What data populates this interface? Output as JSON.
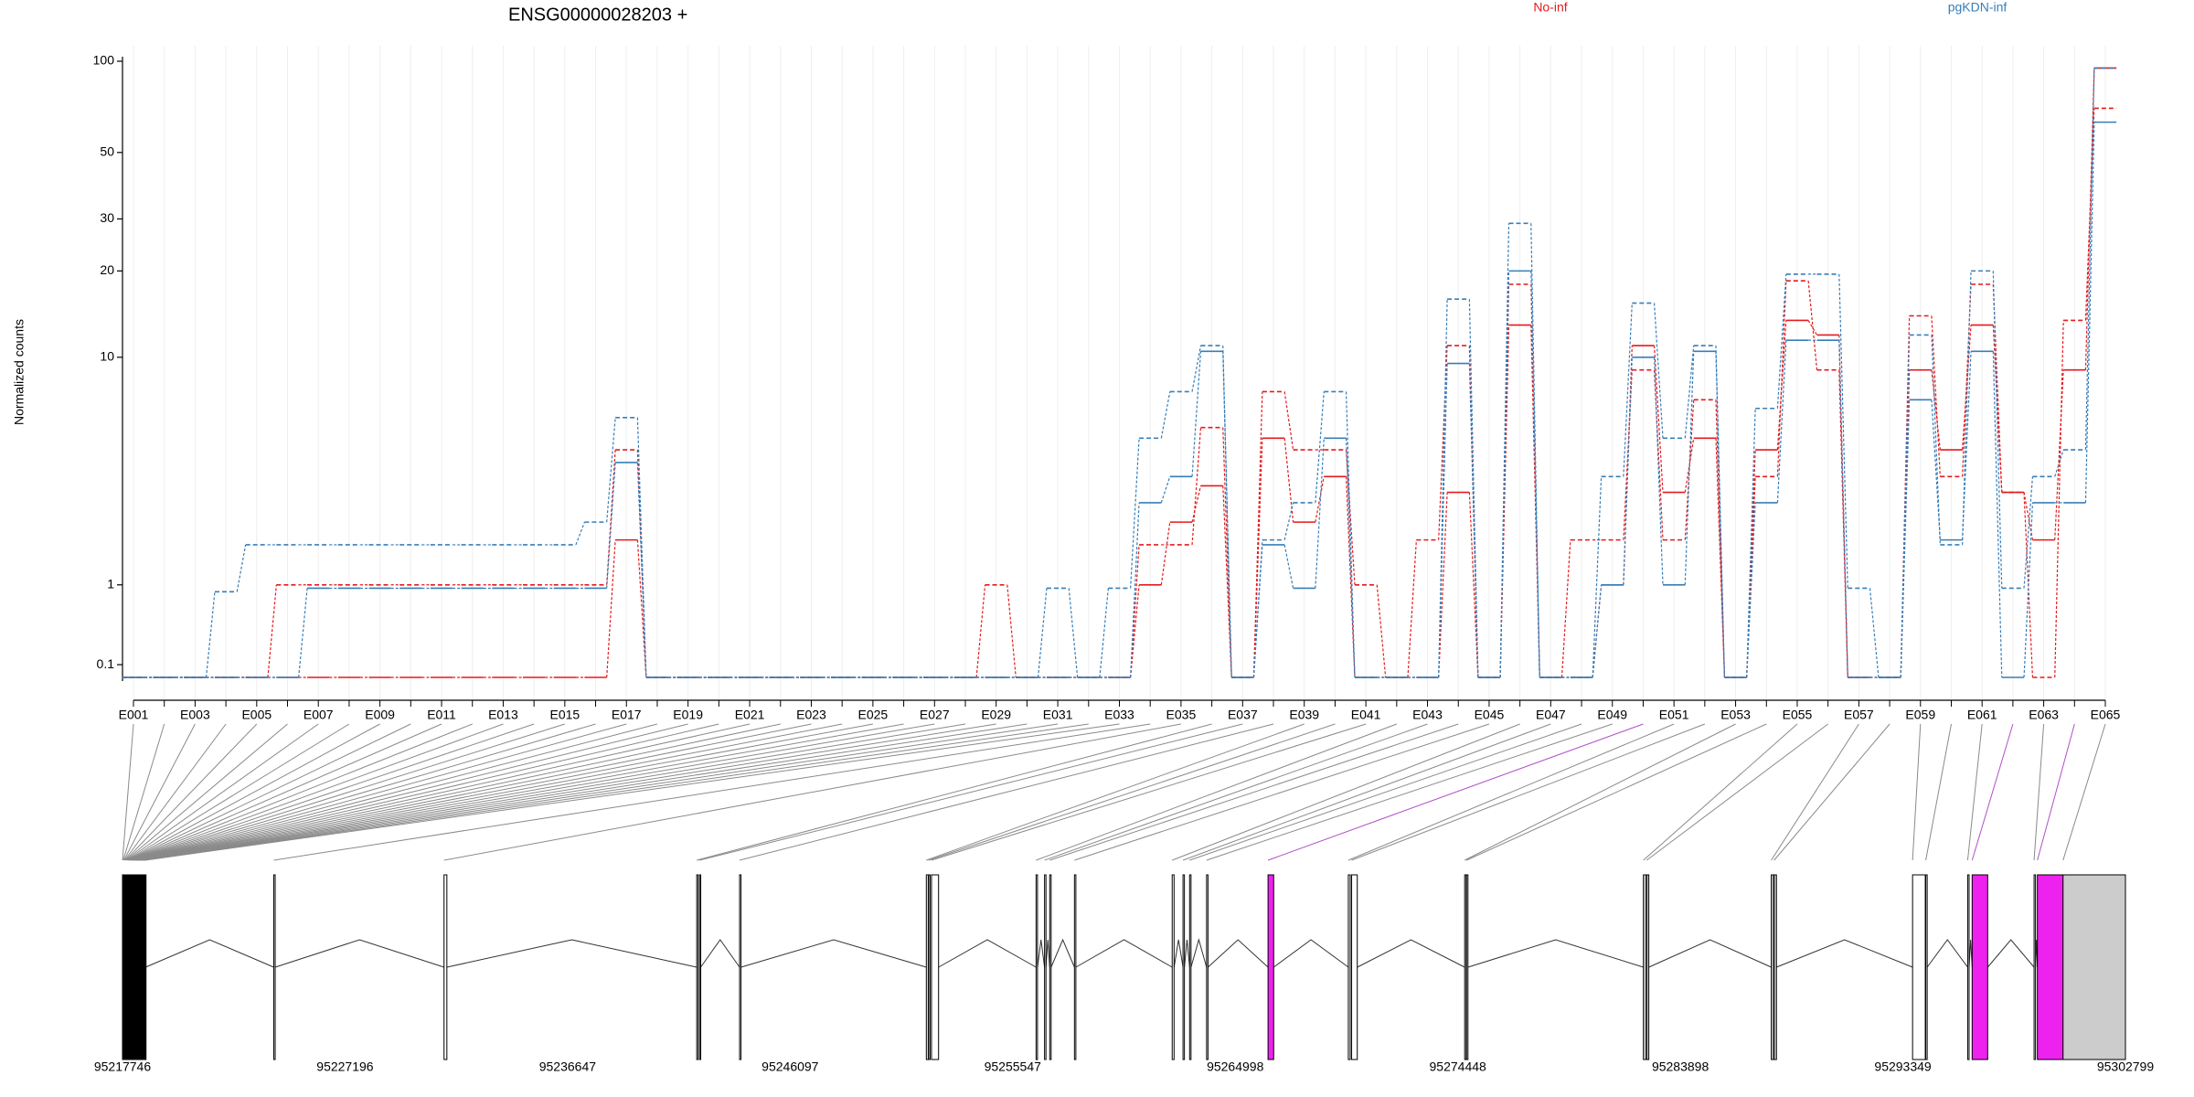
{
  "chart_data": {
    "type": "line",
    "title": "ENSG00000028203 +",
    "ylabel": "Normalized counts",
    "categories": [
      "E001",
      null,
      "E003",
      null,
      "E005",
      null,
      "E007",
      null,
      "E009",
      null,
      "E011",
      null,
      "E013",
      null,
      "E015",
      null,
      "E017",
      null,
      "E019",
      null,
      "E021",
      null,
      "E023",
      null,
      "E025",
      null,
      "E027",
      null,
      "E029",
      null,
      "E031",
      null,
      "E033",
      null,
      "E035",
      null,
      "E037",
      null,
      "E039",
      null,
      "E041",
      null,
      "E043",
      null,
      "E045",
      null,
      "E047",
      null,
      "E049",
      null,
      "E051",
      null,
      "E053",
      null,
      "E055",
      null,
      "E057",
      null,
      "E059",
      null,
      "E061",
      null,
      "E063",
      null,
      "E065"
    ],
    "series": [
      {
        "name": "No-inf",
        "color": "#e41a1c",
        "samples": [
          [
            0,
            0,
            0,
            0,
            0,
            1,
            1,
            1,
            1,
            1,
            1,
            1,
            1,
            1,
            1,
            1,
            4.5,
            0,
            0,
            0,
            0,
            0,
            0,
            0,
            0,
            0,
            0,
            0,
            1,
            0,
            0,
            0,
            0,
            1.7,
            1.7,
            5.5,
            0,
            7.5,
            4.5,
            4.5,
            1,
            0,
            1.8,
            11,
            0,
            18,
            0,
            1.8,
            1.8,
            9,
            1.8,
            7,
            0,
            3.5,
            18.5,
            9,
            0,
            0,
            14,
            3.5,
            18,
            3,
            0,
            13.5,
            70
          ],
          [
            0,
            0,
            0,
            0,
            0,
            0,
            0,
            0,
            0,
            0,
            0,
            0,
            0,
            0,
            0,
            0,
            1.8,
            0,
            0,
            0,
            0,
            0,
            0,
            0,
            0,
            0,
            0,
            0,
            0,
            0,
            0,
            0,
            0,
            1,
            2.2,
            3.2,
            0,
            5,
            2.2,
            3.5,
            0,
            0,
            0,
            3,
            0,
            13,
            0,
            0,
            1,
            11,
            3,
            5,
            0,
            4.5,
            13.5,
            12,
            0,
            0,
            9,
            4.5,
            13,
            3,
            1.8,
            9,
            95
          ]
        ]
      },
      {
        "name": "pgKDN-inf",
        "color": "#377eb8",
        "samples": [
          [
            0,
            0,
            0,
            0.9,
            1.7,
            1.7,
            1.7,
            1.7,
            1.7,
            1.7,
            1.7,
            1.7,
            1.7,
            1.7,
            1.7,
            2.2,
            6,
            0,
            0,
            0,
            0,
            0,
            0,
            0,
            0,
            0,
            0,
            0,
            0,
            0,
            0.95,
            0,
            0.95,
            5,
            7.5,
            11,
            0,
            1.8,
            2.7,
            7.5,
            0,
            0,
            0,
            16,
            0,
            29,
            0,
            0,
            3.5,
            15.5,
            5,
            11,
            0,
            6.5,
            19.5,
            19.5,
            0.95,
            0,
            12,
            1.7,
            20,
            0.95,
            3.5,
            4.5,
            95
          ],
          [
            0,
            0,
            0,
            0,
            0,
            0,
            0.95,
            0.95,
            0.95,
            0.95,
            0.95,
            0.95,
            0.95,
            0.95,
            0.95,
            0.95,
            4,
            0,
            0,
            0,
            0,
            0,
            0,
            0,
            0,
            0,
            0,
            0,
            0,
            0,
            0,
            0,
            0,
            2.7,
            3.5,
            10.5,
            0,
            1.7,
            0.95,
            5,
            0,
            0,
            0,
            9.5,
            0,
            20,
            0,
            0,
            1,
            10,
            1,
            10.5,
            0,
            2.7,
            11.5,
            11.5,
            0,
            0,
            7,
            1.8,
            10.5,
            0,
            2.7,
            2.7,
            63
          ]
        ]
      }
    ],
    "yscale": "log1p",
    "ylim": [
      0,
      100
    ],
    "yticks": [
      0.1,
      1,
      10,
      20,
      30,
      50,
      100
    ],
    "grid": "x",
    "gene_model": {
      "xlim": [
        95217746,
        95302799
      ],
      "xticks": [
        95217746,
        95227196,
        95236647,
        95246097,
        95255547,
        95264998,
        95274448,
        95283898,
        95293349,
        95302799
      ],
      "exon_start": [
        95217746,
        95217776,
        95217806,
        95217836,
        95217866,
        95217896,
        95217926,
        95217956,
        95217986,
        95218016,
        95218046,
        95218076,
        95218106,
        95218136,
        95218166,
        95218196,
        95218226,
        95218256,
        95218286,
        95218316,
        95218346,
        95218376,
        95218406,
        95218436,
        95218466,
        95218496,
        95218526,
        95218556,
        95218586,
        95218616,
        95218646,
        95218676,
        95218706,
        95224170,
        95231400,
        95242130,
        95242250,
        95243950,
        95251880,
        95251980,
        95252100,
        95256540,
        95256900,
        95257120,
        95258170,
        95262320,
        95262780,
        95263060,
        95263780,
        95266390,
        95269800,
        95269940,
        95274740,
        95274820,
        95282330,
        95282470,
        95287760,
        95287880,
        95293760,
        95294320,
        95296100,
        95296290,
        95298920,
        95299060,
        95300150
      ],
      "exon_end": [
        95217766,
        95217796,
        95217826,
        95217856,
        95217886,
        95217916,
        95217946,
        95217976,
        95218006,
        95218036,
        95218066,
        95218096,
        95218126,
        95218156,
        95218186,
        95218216,
        95218246,
        95218276,
        95218306,
        95218336,
        95218366,
        95218396,
        95218426,
        95218456,
        95218486,
        95218516,
        95218546,
        95218576,
        95218606,
        95218636,
        95218666,
        95218696,
        95218726,
        95224230,
        95231520,
        95242190,
        95242300,
        95244010,
        95251960,
        95252040,
        95252400,
        95256600,
        95256960,
        95257180,
        95258230,
        95262400,
        95262840,
        95263120,
        95263840,
        95266630,
        95269880,
        95270180,
        95274800,
        95274880,
        95282450,
        95282560,
        95287860,
        95287980,
        95294300,
        95294380,
        95296160,
        95296950,
        95298980,
        95300150,
        95302799
      ],
      "exon_colors": [
        "#ffffff",
        "#ffffff",
        "#ffffff",
        "#ffffff",
        "#ffffff",
        "#ffffff",
        "#ffffff",
        "#ffffff",
        "#ffffff",
        "#ffffff",
        "#ffffff",
        "#ffffff",
        "#ffffff",
        "#ffffff",
        "#ffffff",
        "#ffffff",
        "#ffffff",
        "#ffffff",
        "#ffffff",
        "#ffffff",
        "#ffffff",
        "#ffffff",
        "#ffffff",
        "#ffffff",
        "#ffffff",
        "#ffffff",
        "#ffffff",
        "#ffffff",
        "#ffffff",
        "#ffffff",
        "#ffffff",
        "#ffffff",
        "#ffffff",
        "#ffffff",
        "#ffffff",
        "#ffffff",
        "#ffffff",
        "#ffffff",
        "#ffffff",
        "#ffffff",
        "#ffffff",
        "#ffffff",
        "#ffffff",
        "#ffffff",
        "#ffffff",
        "#ffffff",
        "#ffffff",
        "#ffffff",
        "#ffffff",
        "#ee22ee",
        "#ffffff",
        "#ffffff",
        "#ffffff",
        "#ffffff",
        "#cccccc",
        "#cccccc",
        "#cccccc",
        "#cccccc",
        "#ffffff",
        "#ffffff",
        "#ffffff",
        "#ee22ee",
        "#ffffff",
        "#ee22ee",
        "#cccccc"
      ]
    }
  }
}
